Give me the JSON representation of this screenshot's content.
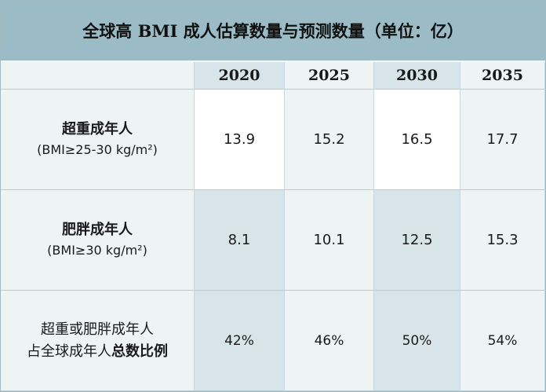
{
  "title": "全球高 BMI 成人估算数量与预测数量（单位：亿）",
  "years": [
    "2020",
    "2025",
    "2030",
    "2035"
  ],
  "rows": [
    {
      "label_main": "超重成年人",
      "label_sub": "(BMI≥25-30 kg/m²)",
      "values": [
        "13.9",
        "15.2",
        "16.5",
        "17.7"
      ]
    },
    {
      "label_main": "肥胖成年人",
      "label_sub": "(BMI≥30 kg/m²)",
      "values": [
        "8.1",
        "10.1",
        "12.5",
        "15.3"
      ]
    },
    {
      "label_line1": "超重或肥胖成年人",
      "label_line2_plain": "占全球成年人",
      "label_line2_bold": "总数比例",
      "values": [
        "42%",
        "46%",
        "50%",
        "54%"
      ]
    }
  ]
}
